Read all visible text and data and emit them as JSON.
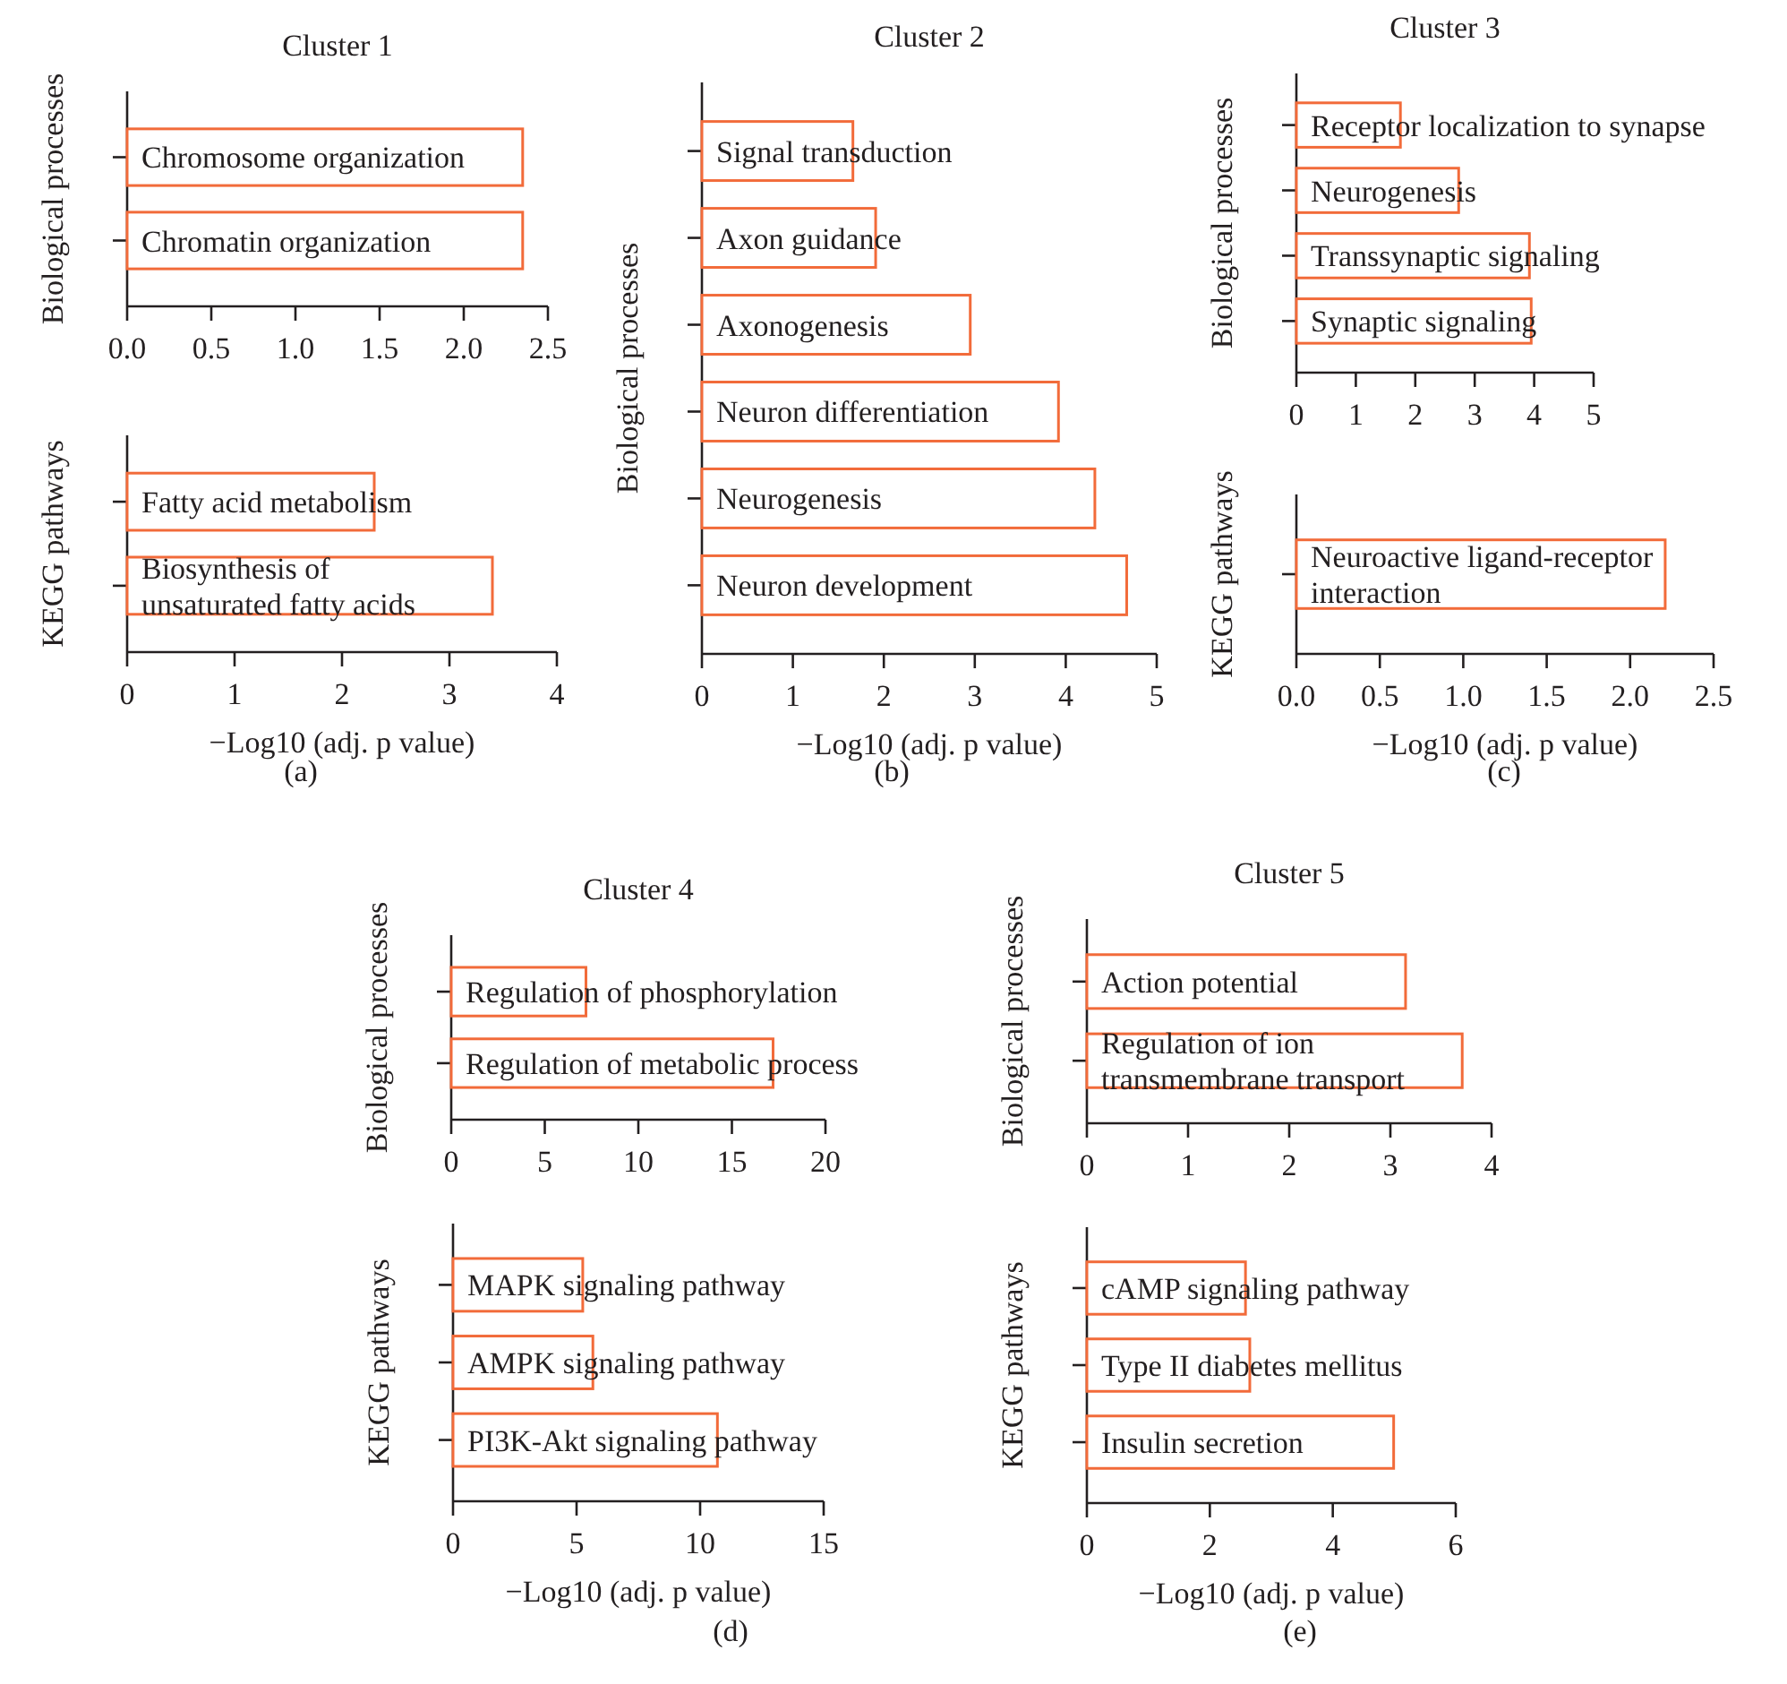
{
  "chart_data": [
    {
      "type": "bar",
      "orientation": "horizontal",
      "title": "Cluster 1",
      "ylabel": "Biological processes",
      "categories": [
        "Chromosome organization",
        "Chromatin organization"
      ],
      "values": [
        2.35,
        2.35
      ],
      "color": "#f26b3a",
      "xlim": [
        0,
        2.5
      ],
      "xticks": [
        {
          "value": 0,
          "label": "0.0"
        },
        0.5,
        {
          "value": 1,
          "label": "1.0"
        },
        1.5,
        {
          "value": 2,
          "label": "2.0"
        },
        2.5
      ]
    },
    {
      "type": "bar",
      "orientation": "horizontal",
      "ylabel": "KEGG pathways",
      "xlabel": "−Log10 (adj. p value)",
      "annotations": [
        "(a)"
      ],
      "categories": [
        "Fatty acid metabolism",
        "Biosynthesis of unsaturated fatty acids"
      ],
      "values": [
        2.3,
        3.4
      ],
      "color": "#f26b3a",
      "xlim": [
        0,
        4
      ],
      "xticks": [
        0,
        1,
        2,
        3,
        4
      ]
    },
    {
      "type": "bar",
      "orientation": "horizontal",
      "title": "Cluster 2",
      "ylabel": "Biological processes",
      "xlabel": "−Log10 (adj. p value)",
      "annotations": [
        "(b)"
      ],
      "categories": [
        "Signal transduction",
        "Axon guidance",
        "Axonogenesis",
        "Neuron differentiation",
        "Neurogenesis",
        "Neuron development"
      ],
      "values": [
        1.66,
        1.91,
        2.95,
        3.92,
        4.32,
        4.67
      ],
      "color": "#f26b3a",
      "xlim": [
        0,
        5
      ],
      "xticks": [
        0,
        1,
        2,
        3,
        4,
        5
      ]
    },
    {
      "type": "bar",
      "orientation": "horizontal",
      "title": "Cluster 3",
      "ylabel": "Biological processes",
      "categories": [
        "Receptor localization to synapse",
        "Neurogenesis",
        "Transsynaptic signaling",
        "Synaptic signaling"
      ],
      "values": [
        1.75,
        2.73,
        3.92,
        3.95
      ],
      "color": "#f26b3a",
      "xlim": [
        0,
        5
      ],
      "xticks": [
        0,
        1,
        2,
        3,
        4,
        5
      ]
    },
    {
      "type": "bar",
      "orientation": "horizontal",
      "ylabel": "KEGG pathways",
      "xlabel": "−Log10 (adj. p value)",
      "annotations": [
        "(c)"
      ],
      "categories": [
        "Neuroactive ligand-receptor interaction"
      ],
      "values": [
        2.21
      ],
      "color": "#f26b3a",
      "xlim": [
        0,
        2.5
      ],
      "xticks": [
        {
          "value": 0,
          "label": "0.0"
        },
        0.5,
        {
          "value": 1,
          "label": "1.0"
        },
        1.5,
        {
          "value": 2,
          "label": "2.0"
        },
        2.5
      ]
    },
    {
      "type": "bar",
      "orientation": "horizontal",
      "title": "Cluster 4",
      "ylabel": "Biological processes",
      "categories": [
        "Regulation of phosphorylation",
        "Regulation of metabolic process"
      ],
      "values": [
        7.2,
        17.2
      ],
      "color": "#f26b3a",
      "xlim": [
        0,
        20
      ],
      "xticks": [
        0,
        5,
        10,
        15,
        20
      ]
    },
    {
      "type": "bar",
      "orientation": "horizontal",
      "ylabel": "KEGG pathways",
      "xlabel": "−Log10 (adj. p value)",
      "annotations": [
        "(d)"
      ],
      "categories": [
        "MAPK signaling pathway",
        "AMPK signaling pathway",
        "PI3K-Akt signaling pathway"
      ],
      "values": [
        5.25,
        5.66,
        10.7
      ],
      "color": "#f26b3a",
      "xlim": [
        0,
        15
      ],
      "xticks": [
        0,
        5,
        10,
        15
      ]
    },
    {
      "type": "bar",
      "orientation": "horizontal",
      "title": "Cluster 5",
      "ylabel": "Biological processes",
      "categories": [
        "Action potential",
        "Regulation of ion transmembrane transport"
      ],
      "values": [
        3.15,
        3.71
      ],
      "color": "#f26b3a",
      "xlim": [
        0,
        4
      ],
      "xticks": [
        0,
        1,
        2,
        3,
        4
      ]
    },
    {
      "type": "bar",
      "orientation": "horizontal",
      "ylabel": "KEGG pathways",
      "xlabel": "−Log10 (adj. p value)",
      "annotations": [
        "(e)"
      ],
      "categories": [
        "cAMP signaling pathway",
        "Type II diabetes mellitus",
        "Insulin secretion"
      ],
      "values": [
        2.58,
        2.65,
        4.99
      ],
      "color": "#f26b3a",
      "xlim": [
        0,
        6
      ],
      "xticks": [
        0,
        2,
        4,
        6
      ]
    }
  ]
}
